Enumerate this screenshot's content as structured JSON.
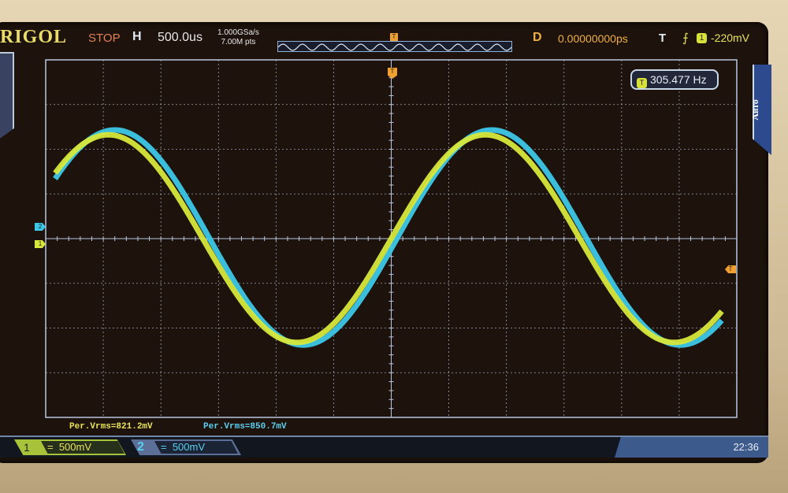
{
  "header": {
    "brand": "RIGOL",
    "run_state": "STOP",
    "horizontal_label": "H",
    "timebase": "500.0us",
    "sample_rate": "1.000GSa/s",
    "memory_depth": "7.00M pts",
    "trigger_position_label": "T",
    "delay_label": "D",
    "delay_value": "0.00000000ps",
    "trigger_label": "T",
    "trigger_edge": "rising-edge-icon",
    "trigger_source": "1",
    "trigger_level": "-220mV"
  },
  "frequency_readout": {
    "source": "T",
    "value": "305.477 Hz"
  },
  "right_menu": {
    "label": "Авто"
  },
  "measurements": [
    {
      "text": "Per.Vrms=821.2mV",
      "color": "#e8e35a"
    },
    {
      "text": "Per.Vrms=850.7mV",
      "color": "#5ad0f0"
    }
  ],
  "channels": [
    {
      "number": "1",
      "coupling": "=",
      "scale": "500mV",
      "color": "#d8e83a",
      "vrms_mV": 821.2,
      "offset_div": 0,
      "phase_deg": 0
    },
    {
      "number": "2",
      "coupling": "=",
      "scale": "500mV",
      "color": "#3cc8e8",
      "vrms_mV": 850.7,
      "offset_div": 0.42,
      "phase_deg": -6
    }
  ],
  "waveform": {
    "frequency_hz": 305.477,
    "timebase_us_per_div": 500,
    "volts_per_div": 0.5,
    "h_divisions": 12,
    "v_divisions": 8
  },
  "trigger_level_marker": "T",
  "clock": "22:36",
  "colors": {
    "screen": "#1d120c",
    "grid": "#b8c8e0",
    "ch1": "#d8e83a",
    "ch2": "#3cc8e8",
    "trigger": "#f0a030"
  }
}
